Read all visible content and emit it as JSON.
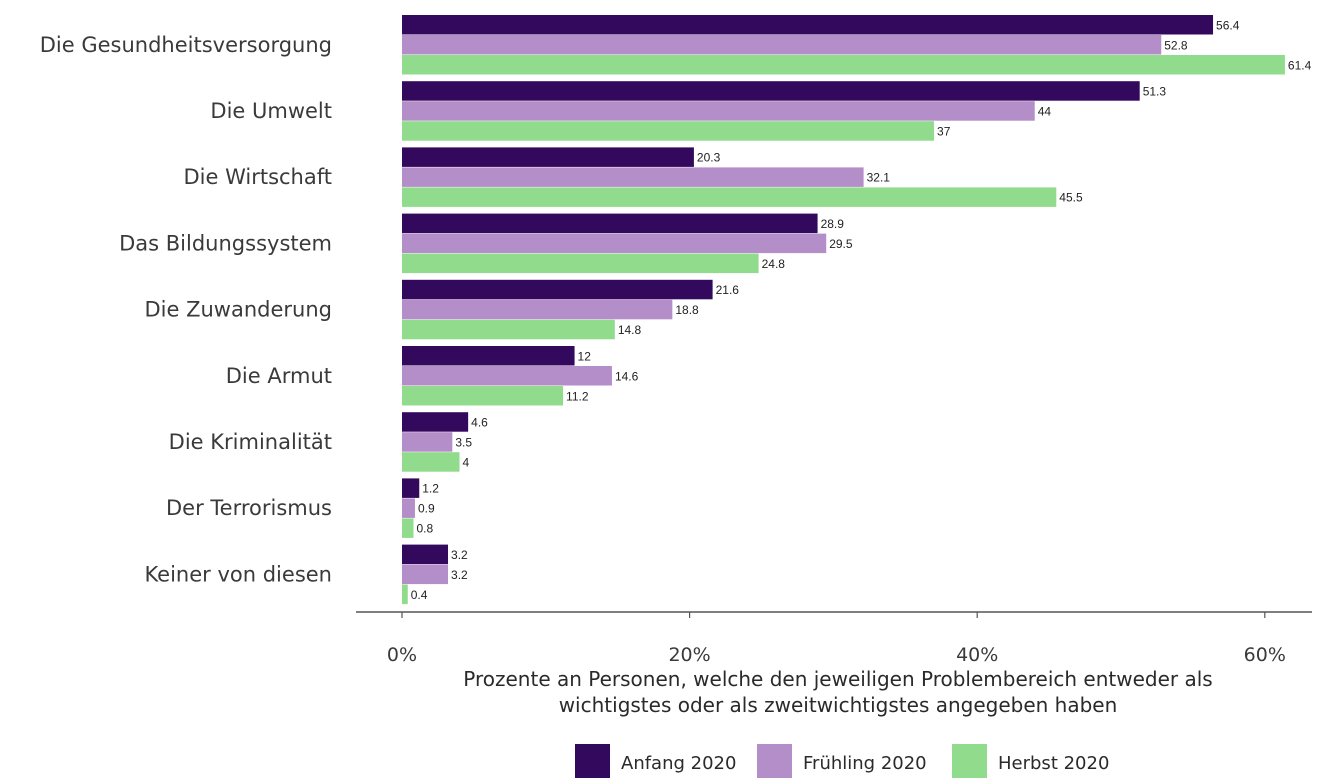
{
  "chart_data": {
    "type": "bar",
    "orientation": "horizontal",
    "categories": [
      "Die Gesundheitsversorgung",
      "Die Umwelt",
      "Die Wirtschaft",
      "Das Bildungssystem",
      "Die Zuwanderung",
      "Die Armut",
      "Die Kriminalität",
      "Der Terrorismus",
      "Keiner von diesen"
    ],
    "series": [
      {
        "name": "Anfang 2020",
        "color": "#33095e",
        "values": [
          56.4,
          51.3,
          20.3,
          28.9,
          21.6,
          12,
          4.6,
          1.2,
          3.2
        ]
      },
      {
        "name": "Frühling 2020",
        "color": "#b48ec8",
        "values": [
          52.8,
          44,
          32.1,
          29.5,
          18.8,
          14.6,
          3.5,
          0.9,
          3.2
        ]
      },
      {
        "name": "Herbst 2020",
        "color": "#90dc8c",
        "values": [
          61.4,
          37,
          45.5,
          24.8,
          14.8,
          11.2,
          4,
          0.8,
          0.4
        ]
      }
    ],
    "xlim": [
      0,
      63
    ],
    "x_ticks": [
      {
        "value": 0,
        "label": "0%"
      },
      {
        "value": 20,
        "label": "20%"
      },
      {
        "value": 40,
        "label": "40%"
      },
      {
        "value": 60,
        "label": "60%"
      }
    ],
    "xlabel_lines": [
      "Prozente an Personen, welche den jeweiligen Problembereich entweder als",
      "wichtigstes oder als zweitwichtigstes angegeben haben"
    ],
    "ylabel": "",
    "title": "",
    "grid": false,
    "legend_position": "bottom"
  }
}
